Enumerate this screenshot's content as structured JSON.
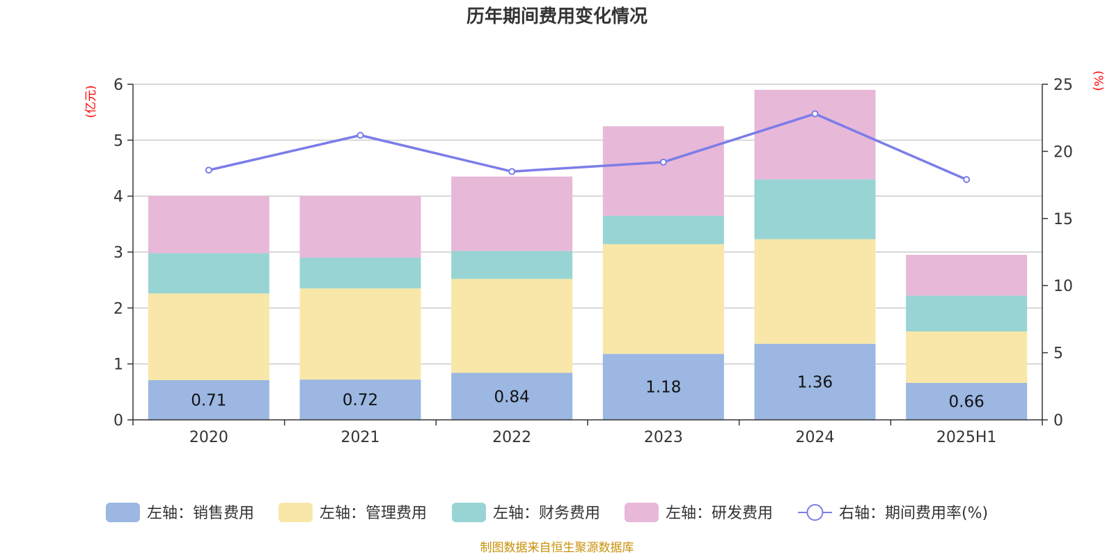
{
  "chart_data": {
    "type": "bar",
    "stacked": true,
    "title": "历年期间费用变化情况",
    "categories": [
      "2020",
      "2021",
      "2022",
      "2023",
      "2024",
      "2025H1"
    ],
    "left_axis": {
      "unit": "(亿元)",
      "range": [
        0,
        6
      ],
      "ticks": [
        "0",
        "1",
        "2",
        "3",
        "4",
        "5",
        "6"
      ]
    },
    "right_axis": {
      "unit": "(%)",
      "range": [
        0,
        25
      ],
      "ticks": [
        "0",
        "5",
        "10",
        "15",
        "20",
        "25"
      ]
    },
    "series": [
      {
        "name": "左轴：销售费用",
        "color": "#9bb7e2",
        "values": [
          0.71,
          0.72,
          0.84,
          1.18,
          1.36,
          0.66
        ],
        "labels": [
          "0.71",
          "0.72",
          "0.84",
          "1.18",
          "1.36",
          "0.66"
        ]
      },
      {
        "name": "左轴：管理费用",
        "color": "#f8e7a8",
        "values": [
          1.55,
          1.63,
          1.68,
          1.96,
          1.87,
          0.92
        ]
      },
      {
        "name": "左轴：财务费用",
        "color": "#98d4d4",
        "values": [
          0.72,
          0.55,
          0.5,
          0.51,
          1.07,
          0.64
        ]
      },
      {
        "name": "左轴：研发费用",
        "color": "#e8b8d8",
        "values": [
          1.02,
          1.1,
          1.33,
          1.6,
          1.6,
          0.73
        ]
      }
    ],
    "line_series": {
      "name": "右轴：期间费用率(%)",
      "color": "#7b7de8",
      "values": [
        18.6,
        21.2,
        18.5,
        19.2,
        22.8,
        17.9
      ]
    },
    "grid": true
  },
  "source_text": "制图数据来自恒生聚源数据库"
}
